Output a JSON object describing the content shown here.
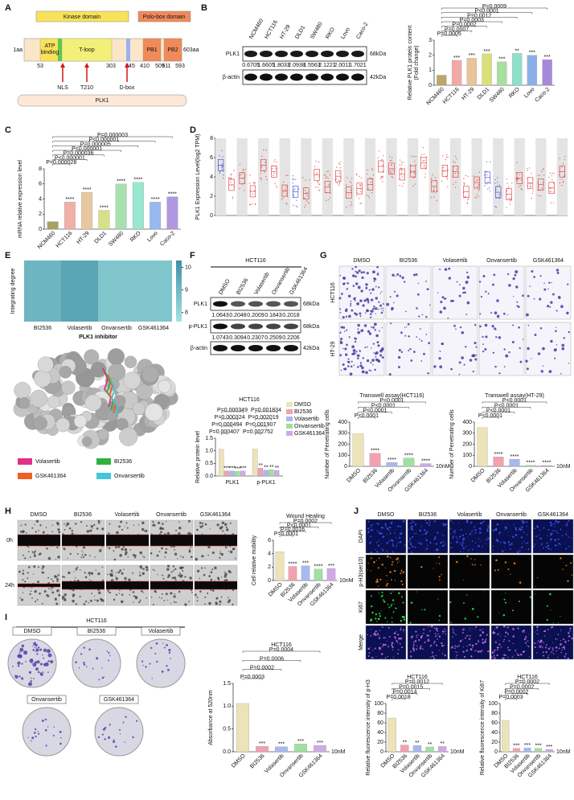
{
  "figure": {
    "panel_letters": [
      "A",
      "B",
      "C",
      "D",
      "E",
      "F",
      "G",
      "H",
      "I",
      "J"
    ],
    "a": {
      "kinase_domain": "Kinase domain",
      "polo_box_domain": "Polo-box domain",
      "start": "1aa",
      "end": "603aa",
      "atp": [
        "ATP",
        "binding"
      ],
      "tloop": "T-loop",
      "pb1": "PB1",
      "pb2": "PB2",
      "positions": [
        53,
        303,
        345,
        410,
        509,
        511,
        593
      ],
      "sites": [
        "NLS",
        "T210",
        "D-box"
      ],
      "protein": "PLK1"
    },
    "b_blot": {
      "lanes": [
        "NCM460",
        "HCT116",
        "HT-29",
        "DLD1",
        "SW480",
        "RKO",
        "Lovo",
        "Caco-2"
      ],
      "bands": [
        "PLK1",
        "β-actin"
      ],
      "sizes": [
        "68kDa",
        "42kDa"
      ],
      "quant": [
        0.6705,
        1.6605,
        1.8033,
        2.0938,
        1.5563,
        2.1221,
        2.0011,
        1.7021
      ]
    },
    "e_structure": {
      "legend": [
        "Volasertib",
        "BI2536",
        "GSK461364",
        "Onvansertib"
      ],
      "colors": [
        "#e0308a",
        "#30b040",
        "#f06020",
        "#40c8d8"
      ]
    },
    "f_blot": {
      "title": "HCT116",
      "lanes": [
        "DMSO",
        "BI2536",
        "Volasertib",
        "Onvansertib",
        "GSK461364"
      ],
      "bands": [
        "PLK1",
        "p-PLK1",
        "β-actin"
      ],
      "sizes": [
        "68kDa",
        "68kDa",
        "42kDa"
      ],
      "quant": [
        [
          1.0643,
          0.2048,
          0.2009,
          0.1843,
          0.2018
        ],
        [
          1.0743,
          0.3094,
          0.2307,
          0.2509,
          0.2206
        ]
      ]
    },
    "treatments": [
      "DMSO",
      "BI2536",
      "Volasertib",
      "Onvansertib",
      "GSK461364"
    ],
    "g_rows": [
      "HCT116",
      "HT-29"
    ],
    "h_rows": [
      "0h",
      "24h"
    ],
    "i_title": "HCT116",
    "j_rows": [
      "DAPI",
      "p-H3(ser10)",
      "Ki67",
      "Merge"
    ]
  },
  "chart_data": [
    {
      "type": "bar",
      "ylabel": [
        "Relative PLK1 protein content",
        "(Fold change)"
      ],
      "categories": [
        "NCM460",
        "HCT116",
        "HT-29",
        "DLD1",
        "SW480",
        "RKO",
        "Lovo",
        "Caco-2"
      ],
      "values": [
        0.67,
        1.66,
        1.8,
        2.09,
        1.56,
        2.12,
        2.0,
        1.7
      ],
      "colors": [
        "#b8a96a",
        "#f2a9a6",
        "#e9c49a",
        "#d9e07a",
        "#a8e0a0",
        "#8fe0c8",
        "#8ab0e8",
        "#a48ad8"
      ],
      "stars": [
        null,
        "***",
        "***",
        "***",
        "***",
        "**",
        "***",
        "***"
      ],
      "p_values": [
        "P=0.0005",
        "P=0.0007",
        "P=0.0002",
        "P=0.0003",
        "P=0.0012",
        "P<0.0001",
        "P=0.0009"
      ],
      "ylim": [
        0,
        3
      ],
      "yticks": [
        0,
        1,
        2,
        3
      ]
    },
    {
      "type": "bar",
      "ylabel": "mRNA relative expression level",
      "categories": [
        "NCM460",
        "HCT116",
        "HT-29",
        "DLD1",
        "SW480",
        "RKO",
        "Lovo",
        "Caco-2"
      ],
      "values": [
        1.0,
        3.6,
        4.9,
        2.5,
        6.0,
        6.2,
        3.6,
        4.3
      ],
      "colors": [
        "#a8a060",
        "#f0b0a8",
        "#e8c8a0",
        "#d8e088",
        "#a8e0b0",
        "#98e8d0",
        "#98b8f0",
        "#b098e0"
      ],
      "stars": [
        null,
        "****",
        "****",
        "****",
        "****",
        "****",
        "****",
        "****"
      ],
      "p_values": [
        "P=0.000028",
        "P<0.000001",
        "P=0.000036",
        "P<0.000001",
        "P=0.000005",
        "P<0.000001",
        "P=0.000003"
      ],
      "ylim": [
        0,
        8
      ],
      "yticks": [
        0,
        2,
        4,
        6,
        8
      ]
    },
    {
      "type": "boxplot",
      "ylabel": "PLK1 Expression Level(log2 TPM)",
      "ylim": [
        0,
        8
      ],
      "yticks": [
        0,
        2,
        4,
        6,
        8
      ]
    },
    {
      "type": "heatmap",
      "ylabel": "Integrating degree",
      "xlabel": "PLK1 inhibitor",
      "categories": [
        "BI2536",
        "Volasertib",
        "Onvansertib",
        "GSK461364"
      ],
      "values": [
        9.1,
        9.6,
        8.6,
        8.6
      ],
      "zlim": [
        7.6,
        10.3
      ],
      "zticks": [
        8,
        9,
        10
      ],
      "colormap": [
        "#a6e4df",
        "#3f8fa8"
      ]
    },
    {
      "type": "grouped_bar",
      "title": "HCT116",
      "ylabel": "Relative protein level",
      "categories": [
        "PLK1",
        "p-PLK1"
      ],
      "series": [
        {
          "name": "DMSO",
          "color": "#ece3b8",
          "values": [
            1.06,
            1.07
          ]
        },
        {
          "name": "BI2536",
          "color": "#f4a0b0",
          "values": [
            0.2,
            0.31
          ]
        },
        {
          "name": "Volasertib",
          "color": "#a8b8f0",
          "values": [
            0.2,
            0.23
          ]
        },
        {
          "name": "Onvansertib",
          "color": "#a0e0a0",
          "values": [
            0.18,
            0.25
          ]
        },
        {
          "name": "GSK461364",
          "color": "#d0a8e8",
          "values": [
            0.2,
            0.22
          ]
        }
      ],
      "stars": [
        [
          "***",
          "***",
          "***",
          "***"
        ],
        [
          "**",
          "**",
          "**",
          "**"
        ]
      ],
      "p_values": [
        [
          "P=0.000407",
          "P=0.000494",
          "P=0.000324",
          "P=0.000349"
        ],
        [
          "P=0.002752",
          "P=0.001907",
          "P=0.002019",
          "P=0.001834"
        ]
      ],
      "ylim": [
        0,
        1.5
      ],
      "yticks": [
        {
          "value": 0,
          "label": "0.0"
        },
        {
          "value": 0.5,
          "label": "0.5"
        },
        {
          "value": 1,
          "label": "1.0"
        },
        {
          "value": 1.5,
          "label": "1.5"
        }
      ]
    },
    {
      "type": "bar",
      "title": "Transwell assay(HCT116)",
      "ylabel": "Number of Penetrating cells",
      "categories": [
        "DMSO",
        "BI2536",
        "Volasertib",
        "Onvansertib",
        "GSK461364"
      ],
      "values": [
        295,
        118,
        35,
        75,
        25
      ],
      "colors": [
        "#ece3b8",
        "#f4a0b0",
        "#a8b8f0",
        "#a0e0a0",
        "#d0a8e8"
      ],
      "stars": [
        null,
        "****",
        "****",
        "****",
        "****"
      ],
      "p_values": [
        "P<0.0001",
        "P<0.0001",
        "P<0.0001",
        "P<0.0001"
      ],
      "unit": "10nM",
      "ylim": [
        0,
        400
      ],
      "yticks": [
        0,
        100,
        200,
        300,
        400
      ]
    },
    {
      "type": "bar",
      "title": "Transwell assay(HT-29)",
      "ylabel": "Number of Penetrating cells",
      "categories": [
        "DMSO",
        "BI2536",
        "Volasertib",
        "Onvansertib",
        "GSK461364"
      ],
      "values": [
        350,
        85,
        65,
        10,
        8
      ],
      "colors": [
        "#ece3b8",
        "#f4a0b0",
        "#a8b8f0",
        "#a0e0a0",
        "#d0a8e8"
      ],
      "stars": [
        null,
        "****",
        "****",
        "****",
        "****"
      ],
      "p_values": [
        "P<0.0001",
        "P<0.0001",
        "P<0.0001",
        "P<0.0001"
      ],
      "unit": "10nM",
      "ylim": [
        0,
        400
      ],
      "yticks": [
        0,
        100,
        200,
        300,
        400
      ]
    },
    {
      "type": "bar",
      "title": "Wound Healing",
      "ylabel": "Cell relative mobility",
      "categories": [
        "DMSO",
        "BI2536",
        "Volasertib",
        "Onvansertib",
        "GSK461364"
      ],
      "values": [
        4.3,
        2.1,
        2.2,
        1.7,
        1.8
      ],
      "colors": [
        "#ece3b8",
        "#f4a0b0",
        "#a8b8f0",
        "#a0e0a0",
        "#d0a8e8"
      ],
      "stars": [
        null,
        "****",
        "***",
        "****",
        "***"
      ],
      "p_values": [
        "P=0.0001",
        "P=0.0016",
        "P<0.0001",
        "P=0.0002"
      ],
      "unit": "10nM",
      "ylim": [
        0,
        6
      ],
      "yticks": [
        0,
        2,
        4,
        6
      ]
    },
    {
      "type": "bar",
      "title": "HCT116",
      "ylabel": "Absorbance at 520nm",
      "categories": [
        "DMSO",
        "BI2536",
        "Volasertib",
        "Onvansertib",
        "GSK461364"
      ],
      "values": [
        1.06,
        0.12,
        0.11,
        0.17,
        0.14
      ],
      "colors": [
        "#ece3b8",
        "#f4a0b0",
        "#a8b8f0",
        "#a0e0a0",
        "#d0a8e8"
      ],
      "stars": [
        null,
        "***",
        "***",
        "***",
        "***"
      ],
      "p_values": [
        "P=0.0003",
        "P=0.0002",
        "P=0.0006",
        "P=0.0004"
      ],
      "unit": "10nM",
      "ylim": [
        0,
        1.5
      ],
      "yticks": [
        {
          "value": 0,
          "label": "0.0"
        },
        {
          "value": 0.5,
          "label": "0.5"
        },
        {
          "value": 1,
          "label": "1.0"
        },
        {
          "value": 1.5,
          "label": "1.5"
        }
      ]
    },
    {
      "type": "bar",
      "title": "HCT116",
      "ylabel": "Relative fluorescence intensity of p-H3",
      "categories": [
        "DMSO",
        "BI2536",
        "Volasertib",
        "Onvansertib",
        "GSK461364"
      ],
      "values": [
        70,
        14,
        13,
        10,
        11
      ],
      "colors": [
        "#ece3b8",
        "#f4a0b0",
        "#a8b8f0",
        "#a0e0a0",
        "#d0a8e8"
      ],
      "stars": [
        null,
        "**",
        "**",
        "**",
        "**"
      ],
      "p_values": [
        "P=0.0018",
        "P=0.0014",
        "P=0.0015",
        "P=0.0012"
      ],
      "unit": "10nM",
      "ylim": [
        0,
        100
      ],
      "yticks": [
        0,
        20,
        40,
        60,
        80,
        100
      ]
    },
    {
      "type": "bar",
      "title": "HCT116",
      "ylabel": "Relative fluorescence intensity of Ki67",
      "categories": [
        "DMSO",
        "BI2536",
        "Volasertib",
        "Onvansertib",
        "GSK461364"
      ],
      "values": [
        65,
        7,
        8,
        7,
        5
      ],
      "colors": [
        "#ece3b8",
        "#f4a0b0",
        "#a8b8f0",
        "#a0e0a0",
        "#d0a8e8"
      ],
      "stars": [
        null,
        "***",
        "***",
        "***",
        "***"
      ],
      "p_values": [
        "P=0.0003",
        "P=0.0002",
        "P=0.0002",
        "P=0.0002"
      ],
      "unit": "10nM",
      "ylim": [
        0,
        100
      ],
      "yticks": [
        0,
        20,
        40,
        60,
        80,
        100
      ]
    }
  ]
}
